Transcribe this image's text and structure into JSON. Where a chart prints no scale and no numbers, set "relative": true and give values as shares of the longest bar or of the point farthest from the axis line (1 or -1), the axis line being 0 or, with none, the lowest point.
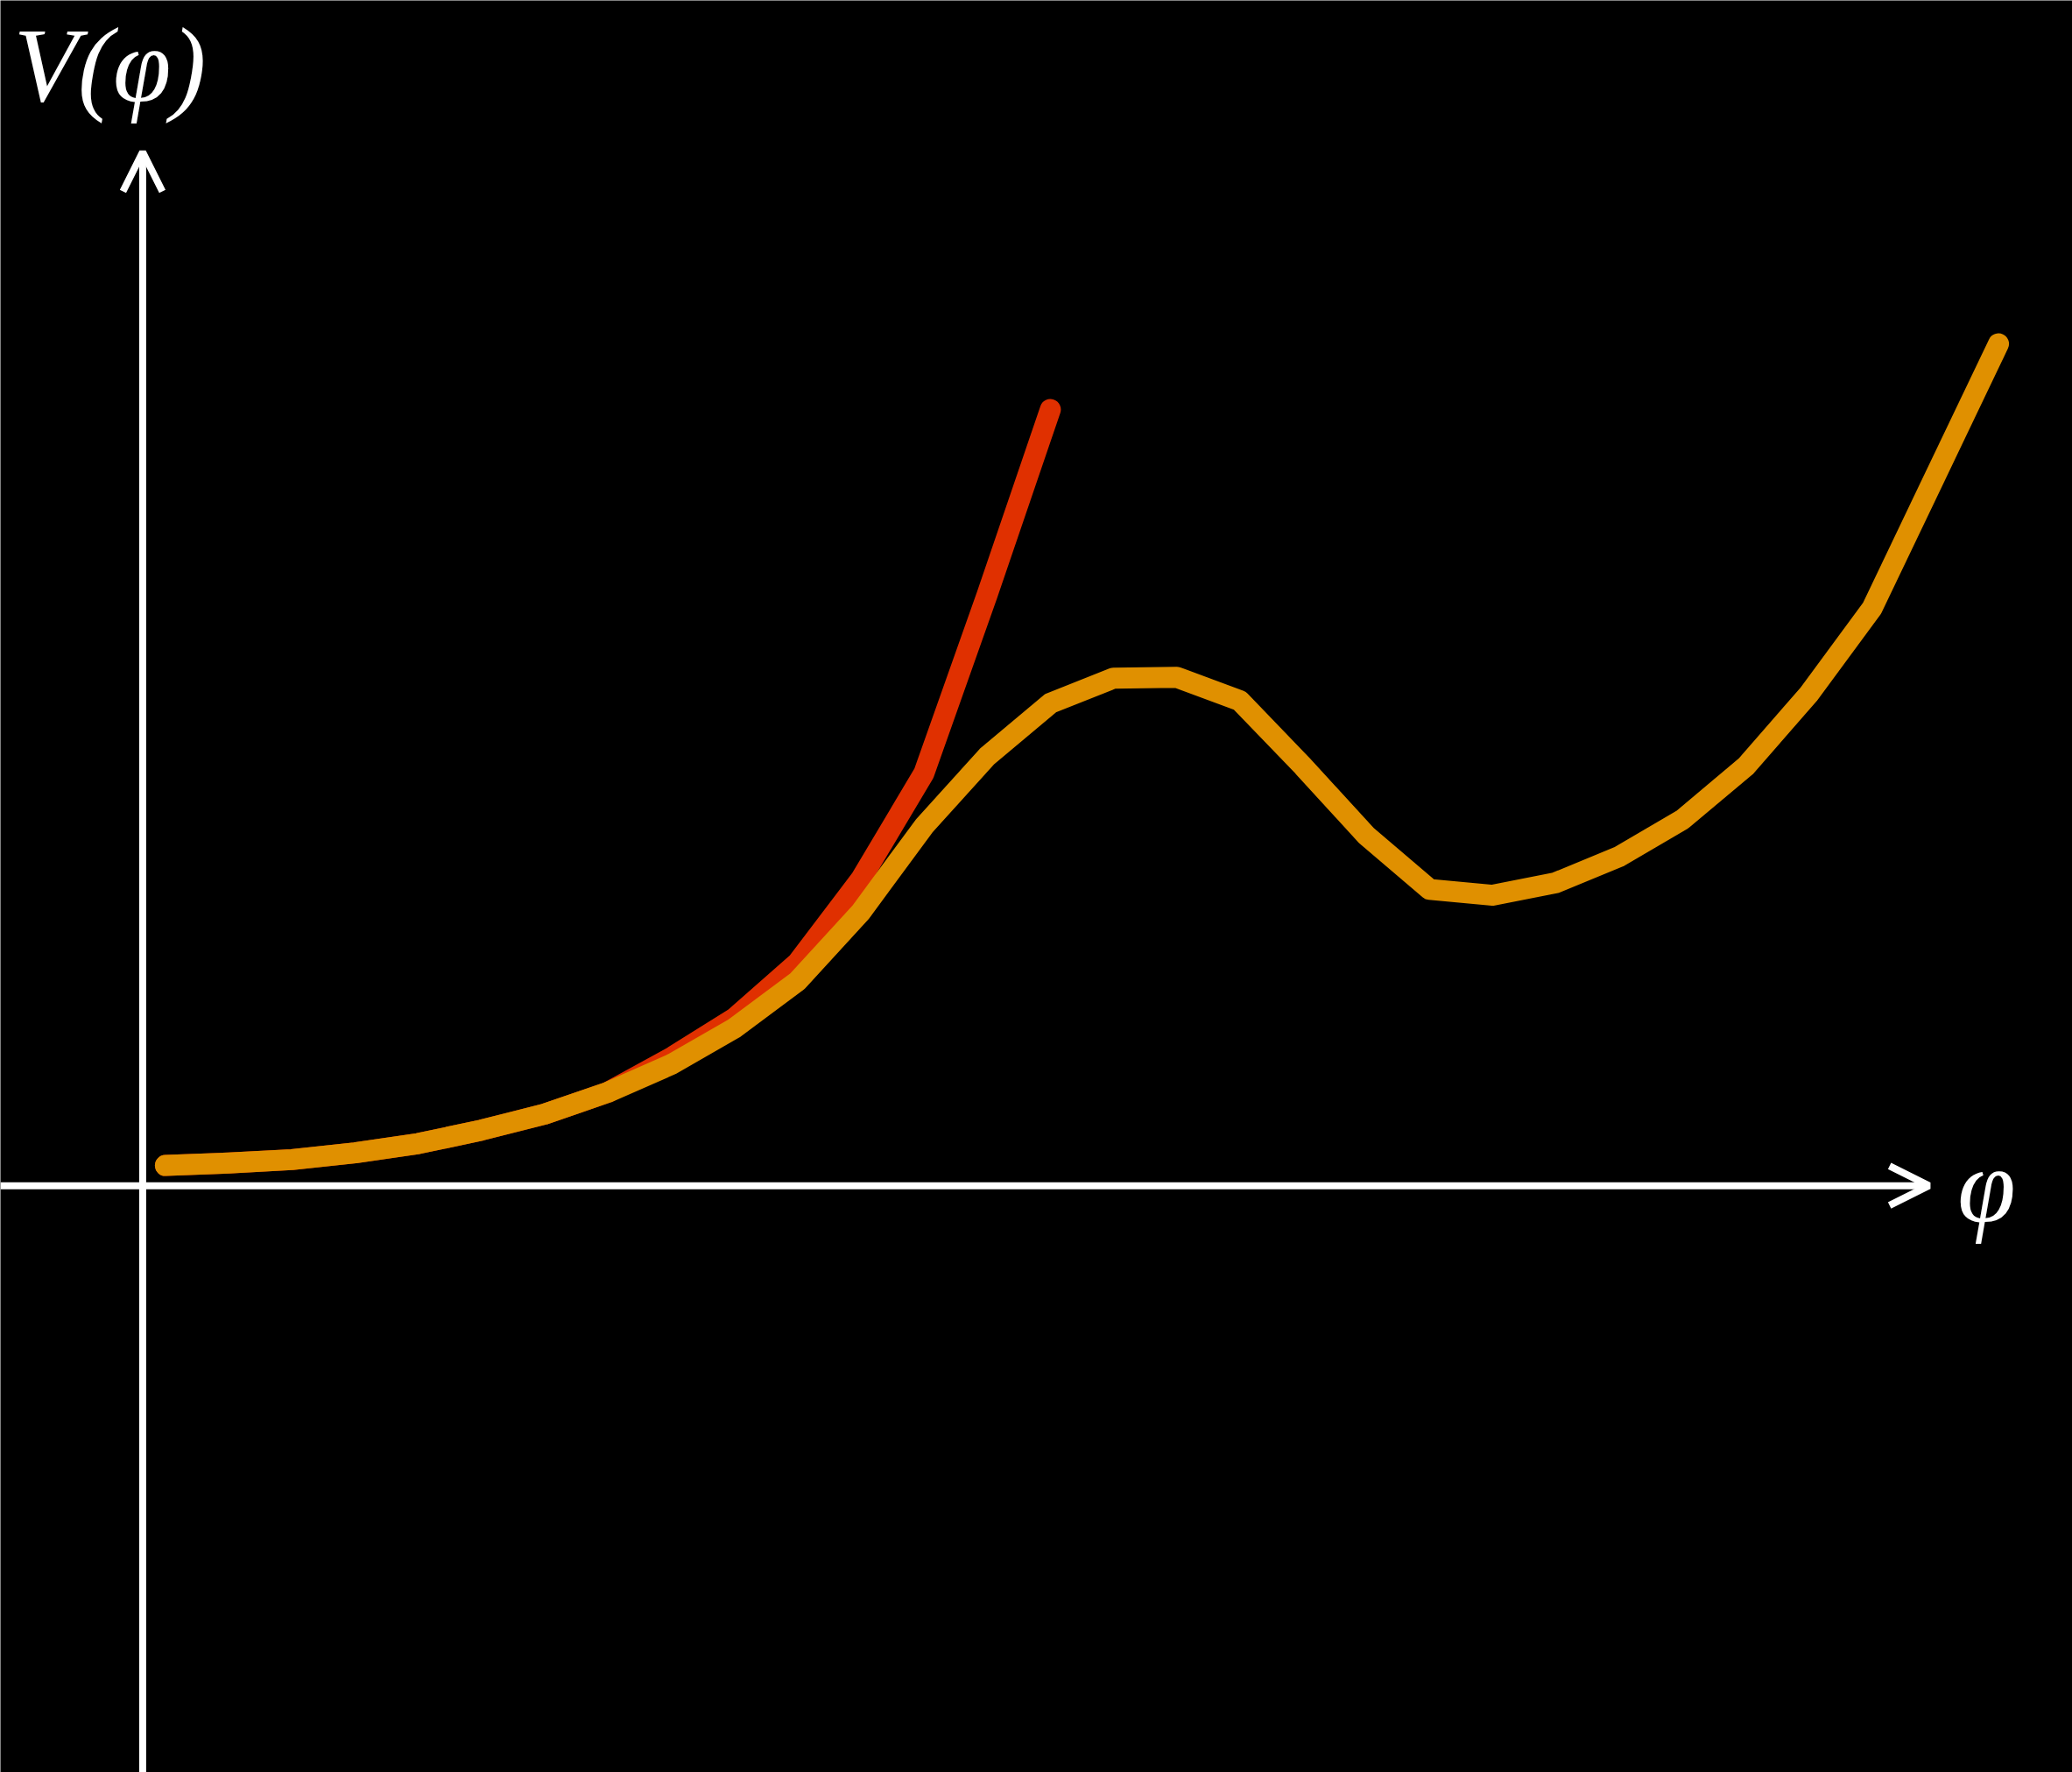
{
  "chart_data": {
    "type": "line",
    "relative": true,
    "xlabel": "φ",
    "ylabel": "V(φ)",
    "categories": [
      null,
      null,
      null,
      null,
      null,
      null,
      null,
      null,
      null,
      null,
      null,
      null,
      null,
      null,
      null,
      null,
      null,
      null,
      null,
      null,
      null,
      null,
      null,
      null,
      null,
      null,
      null,
      null,
      null,
      null
    ],
    "series": [
      {
        "color": "#e03000",
        "values": [
          0.024,
          0.027,
          0.031,
          0.039,
          0.05,
          0.066,
          0.085,
          0.111,
          0.152,
          0.199,
          0.265,
          0.364,
          0.49,
          0.702,
          0.922,
          null,
          null,
          null,
          null,
          null,
          null,
          null,
          null,
          null,
          null,
          null,
          null,
          null,
          null,
          null
        ]
      },
      {
        "color": "#e09000",
        "values": [
          0.024,
          0.027,
          0.031,
          0.039,
          0.05,
          0.066,
          0.085,
          0.111,
          0.144,
          0.187,
          0.243,
          0.325,
          0.427,
          0.51,
          0.573,
          0.603,
          0.604,
          0.576,
          0.498,
          0.416,
          0.352,
          0.345,
          0.36,
          0.391,
          0.435,
          0.498,
          0.584,
          0.686,
          0.843,
          1
        ]
      }
    ]
  }
}
